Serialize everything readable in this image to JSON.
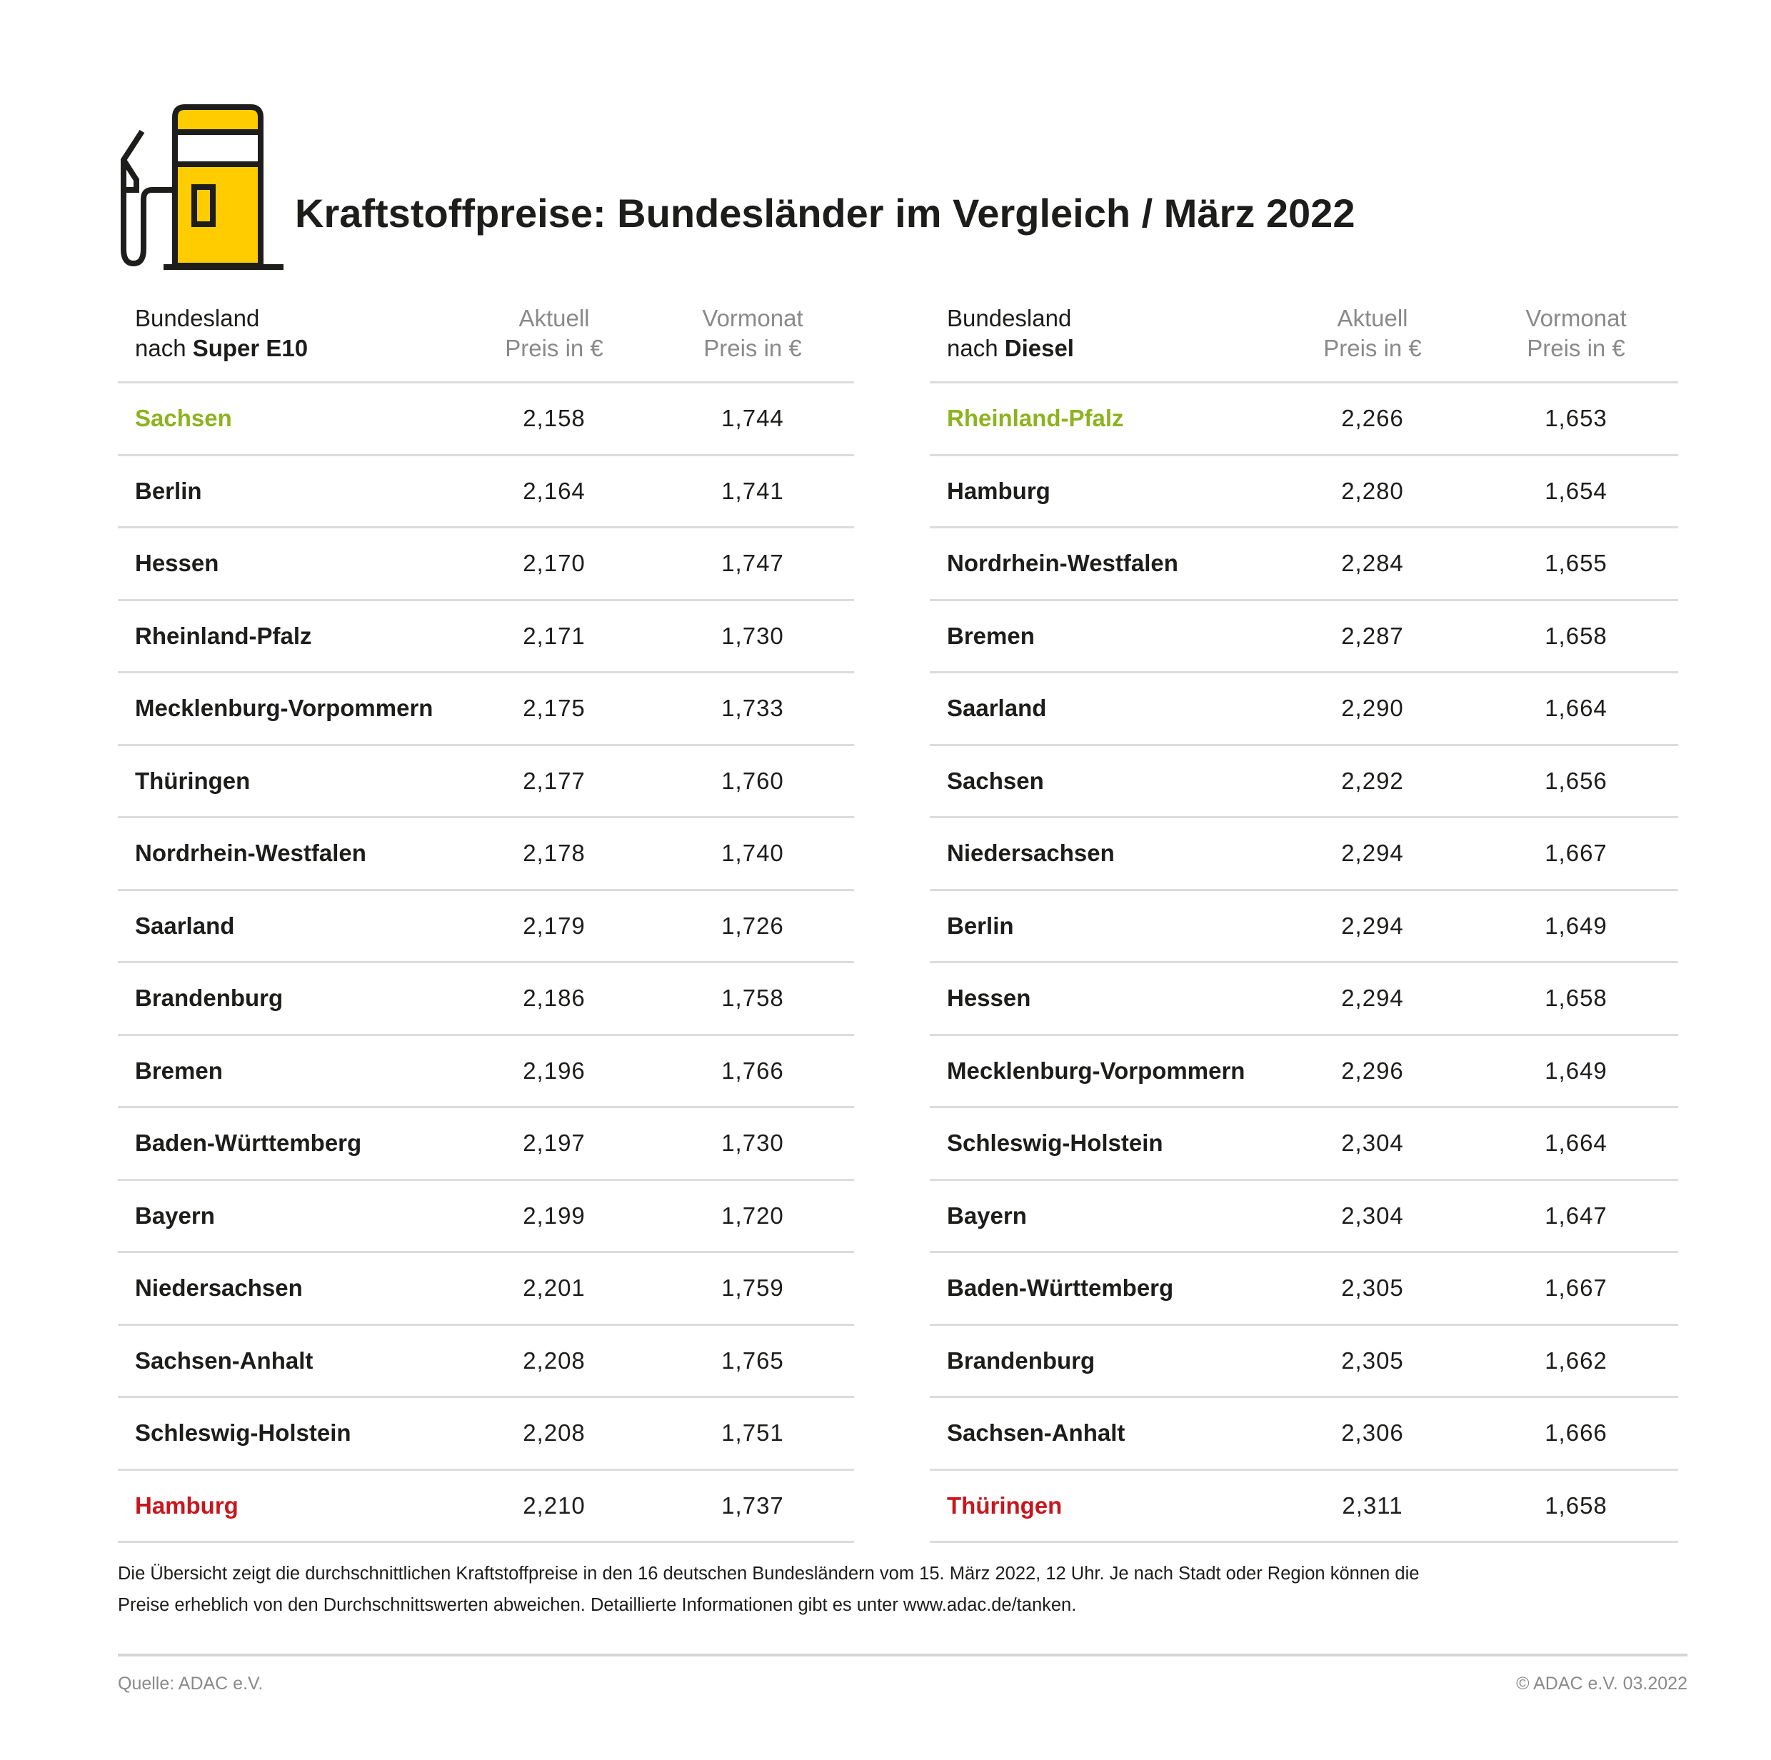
{
  "title": "Kraftstoffpreise: Bundesländer im Vergleich / März 2022",
  "colors": {
    "accent_yellow": "#ffcc00",
    "cheapest_green": "#8db31f",
    "most_expensive_red": "#c8161d"
  },
  "icon": "fuel-pump-icon",
  "super_e10": {
    "header": {
      "col1_line1": "Bundesland",
      "col1_line2_prefix": "nach ",
      "col1_line2_bold": "Super E10",
      "col2_line1": "Aktuell",
      "col2_line2": "Preis in €",
      "col3_line1": "Vormonat",
      "col3_line2": "Preis in €"
    },
    "rows": [
      {
        "name": "Sachsen",
        "current": "2,158",
        "previous": "1,744",
        "highlight": "green"
      },
      {
        "name": "Berlin",
        "current": "2,164",
        "previous": "1,741"
      },
      {
        "name": "Hessen",
        "current": "2,170",
        "previous": "1,747"
      },
      {
        "name": "Rheinland-Pfalz",
        "current": "2,171",
        "previous": "1,730"
      },
      {
        "name": "Mecklenburg-Vorpommern",
        "current": "2,175",
        "previous": "1,733"
      },
      {
        "name": "Thüringen",
        "current": "2,177",
        "previous": "1,760"
      },
      {
        "name": "Nordrhein-Westfalen",
        "current": "2,178",
        "previous": "1,740"
      },
      {
        "name": "Saarland",
        "current": "2,179",
        "previous": "1,726"
      },
      {
        "name": "Brandenburg",
        "current": "2,186",
        "previous": "1,758"
      },
      {
        "name": "Bremen",
        "current": "2,196",
        "previous": "1,766"
      },
      {
        "name": "Baden-Württemberg",
        "current": "2,197",
        "previous": "1,730"
      },
      {
        "name": "Bayern",
        "current": "2,199",
        "previous": "1,720"
      },
      {
        "name": "Niedersachsen",
        "current": "2,201",
        "previous": "1,759"
      },
      {
        "name": "Sachsen-Anhalt",
        "current": "2,208",
        "previous": "1,765"
      },
      {
        "name": "Schleswig-Holstein",
        "current": "2,208",
        "previous": "1,751"
      },
      {
        "name": "Hamburg",
        "current": "2,210",
        "previous": "1,737",
        "highlight": "red"
      }
    ]
  },
  "diesel": {
    "header": {
      "col1_line1": "Bundesland",
      "col1_line2_prefix": "nach ",
      "col1_line2_bold": "Diesel",
      "col2_line1": "Aktuell",
      "col2_line2": "Preis in €",
      "col3_line1": "Vormonat",
      "col3_line2": "Preis in €"
    },
    "rows": [
      {
        "name": "Rheinland-Pfalz",
        "current": "2,266",
        "previous": "1,653",
        "highlight": "green"
      },
      {
        "name": "Hamburg",
        "current": "2,280",
        "previous": "1,654"
      },
      {
        "name": "Nordrhein-Westfalen",
        "current": "2,284",
        "previous": "1,655"
      },
      {
        "name": "Bremen",
        "current": "2,287",
        "previous": "1,658"
      },
      {
        "name": "Saarland",
        "current": "2,290",
        "previous": "1,664"
      },
      {
        "name": "Sachsen",
        "current": "2,292",
        "previous": "1,656"
      },
      {
        "name": "Niedersachsen",
        "current": "2,294",
        "previous": "1,667"
      },
      {
        "name": "Berlin",
        "current": "2,294",
        "previous": "1,649"
      },
      {
        "name": "Hessen",
        "current": "2,294",
        "previous": "1,658"
      },
      {
        "name": "Mecklenburg-Vorpommern",
        "current": "2,296",
        "previous": "1,649"
      },
      {
        "name": "Schleswig-Holstein",
        "current": "2,304",
        "previous": "1,664"
      },
      {
        "name": "Bayern",
        "current": "2,304",
        "previous": "1,647"
      },
      {
        "name": "Baden-Württemberg",
        "current": "2,305",
        "previous": "1,667"
      },
      {
        "name": "Brandenburg",
        "current": "2,305",
        "previous": "1,662"
      },
      {
        "name": "Sachsen-Anhalt",
        "current": "2,306",
        "previous": "1,666"
      },
      {
        "name": "Thüringen",
        "current": "2,311",
        "previous": "1,658",
        "highlight": "red"
      }
    ]
  },
  "footnote": {
    "line1": "Die Übersicht zeigt die durchschnittlichen Kraftstoffpreise in den 16 deutschen Bundesländern vom 15. März 2022, 12 Uhr. Je nach Stadt oder Region können die",
    "line2": "Preise erheblich von den Durchschnittswerten abweichen. Detaillierte Informationen gibt es unter www.adac.de/tanken."
  },
  "source": "Quelle: ADAC e.V.",
  "copyright": "© ADAC e.V. 03.2022"
}
